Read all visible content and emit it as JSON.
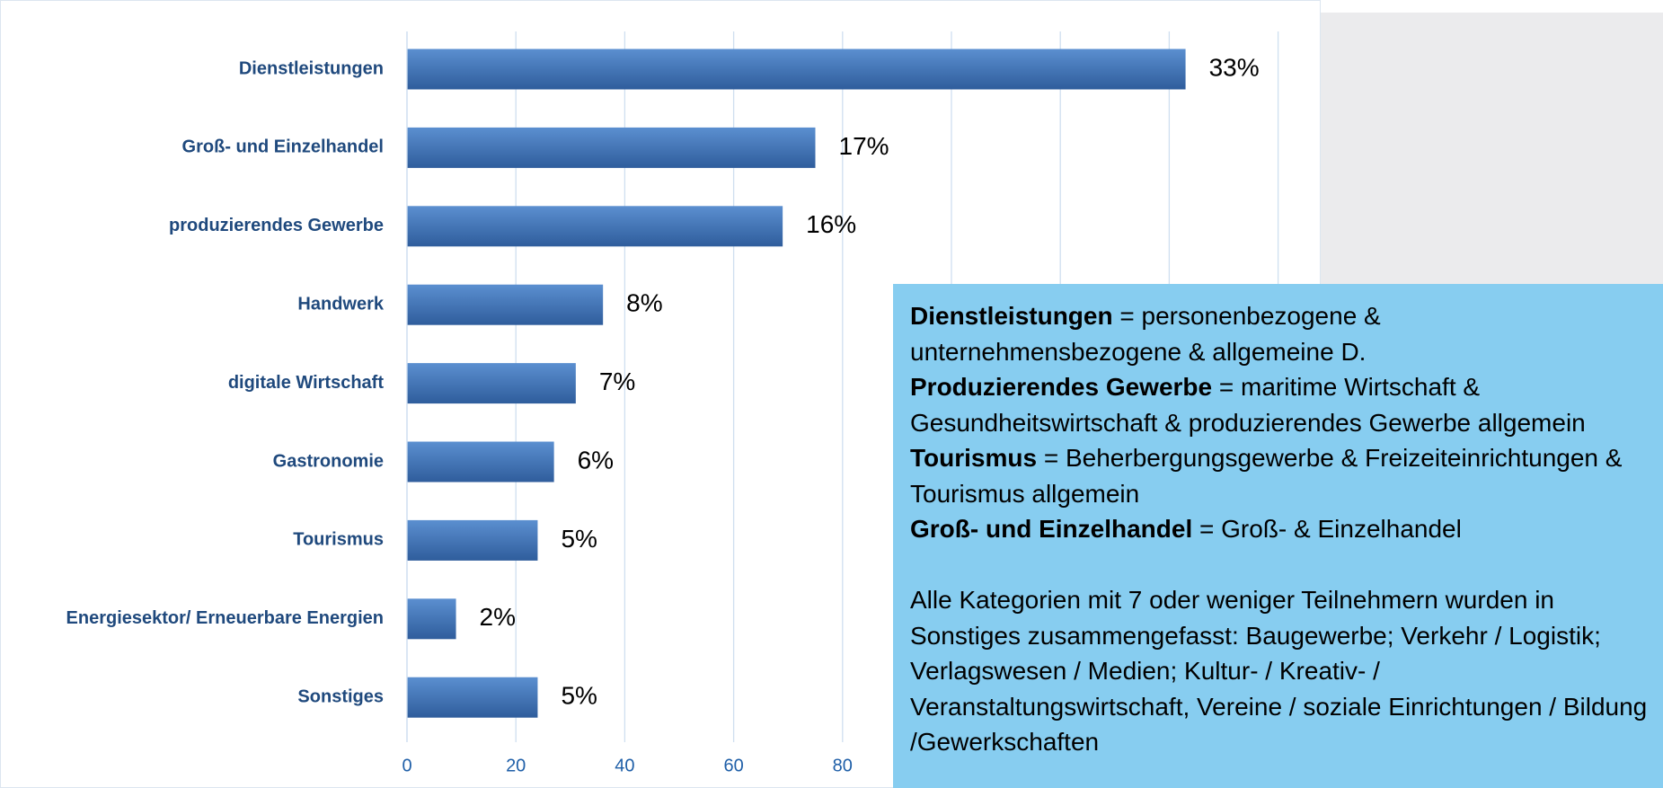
{
  "chart_data": {
    "type": "bar",
    "orientation": "horizontal",
    "categories": [
      "Dienstleistungen",
      "Groß- und Einzelhandel",
      "produzierendes Gewerbe",
      "Handwerk",
      "digitale Wirtschaft",
      "Gastronomie",
      "Tourismus",
      "Energiesektor/ Erneuerbare Energien",
      "Sonstiges"
    ],
    "values": [
      143,
      75,
      69,
      36,
      31,
      27,
      24,
      9,
      24
    ],
    "percent_labels": [
      "33%",
      "17%",
      "16%",
      "8%",
      "7%",
      "6%",
      "5%",
      "2%",
      "5%"
    ],
    "color": "#3f6fae",
    "xlim": [
      0,
      160
    ],
    "xticks": [
      0,
      20,
      40,
      60,
      80,
      100,
      120,
      140,
      160
    ],
    "grid": true
  },
  "note_box": {
    "definitions": [
      {
        "term": "Dienstleistungen",
        "text": "= personenbezogene & unternehmensbezogene & allgemeine D."
      },
      {
        "term": "Produzierendes Gewerbe",
        "text": "= maritime Wirtschaft & Gesundheitswirtschaft & produzierendes Gewerbe allgemein"
      },
      {
        "term": "Tourismus",
        "text": "= Beherbergungsgewerbe & Freizeiteinrichtungen & Tourismus allgemein"
      },
      {
        "term": "Groß- und Einzelhandel",
        "text": "= Groß- & Einzelhandel"
      }
    ],
    "note": "Alle Kategorien mit 7 oder weniger Teilnehmern wurden in Sonstiges zusammengefasst: Baugewerbe; Verkehr / Logistik; Verlagswesen / Medien; Kultur- / Kreativ- / Veranstaltungswirtschaft, Vereine / soziale Einrichtungen / Bildung /Gewerkschaften"
  }
}
